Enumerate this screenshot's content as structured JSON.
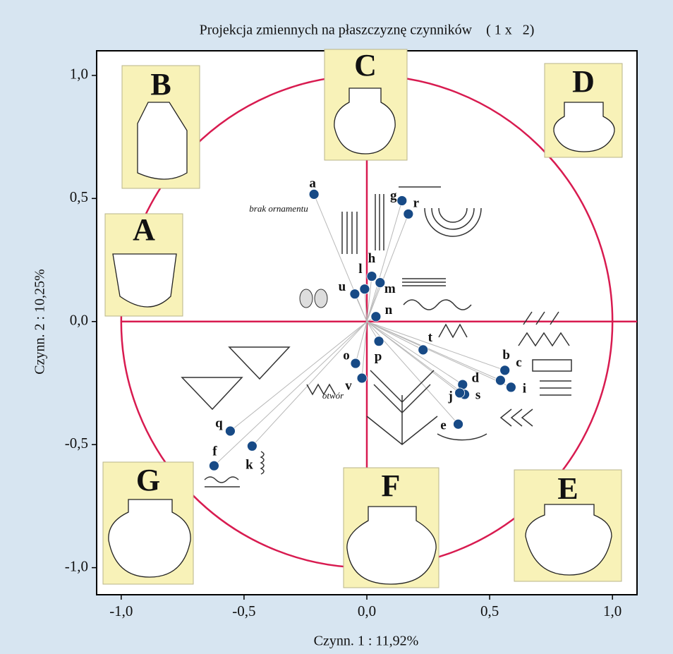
{
  "chart_data": {
    "type": "scatter",
    "title": "Projekcja zmiennych na płaszczyznę czynników    ( 1 x   2)",
    "x_label": "Czynn. 1 : 11,92%",
    "y_label": "Czynn. 2 : 10,25%",
    "point_labels": [
      "a",
      "g",
      "r",
      "h",
      "m",
      "l",
      "u",
      "n",
      "p",
      "t",
      "o",
      "v",
      "b",
      "c",
      "i",
      "d",
      "s",
      "j",
      "e",
      "q",
      "k",
      "f"
    ],
    "x": [
      -0.215,
      0.143,
      0.169,
      0.02,
      0.054,
      -0.009,
      -0.049,
      0.037,
      0.049,
      0.229,
      -0.046,
      -0.02,
      0.562,
      0.544,
      0.587,
      0.39,
      0.398,
      0.378,
      0.372,
      -0.556,
      -0.467,
      -0.622
    ],
    "y": [
      0.517,
      0.491,
      0.437,
      0.184,
      0.158,
      0.132,
      0.112,
      0.02,
      -0.08,
      -0.115,
      -0.17,
      -0.23,
      -0.198,
      -0.239,
      -0.267,
      -0.256,
      -0.296,
      -0.29,
      -0.417,
      -0.445,
      -0.506,
      -0.586
    ],
    "color": "#174a86",
    "xlim": [
      -1.1,
      1.1
    ],
    "ylim": [
      -1.11,
      1.1
    ],
    "xticks": [
      {
        "value": -1.0,
        "label": "-1,0"
      },
      {
        "value": -0.5,
        "label": "-0,5"
      },
      {
        "value": 0.0,
        "label": "0,0"
      },
      {
        "value": 0.5,
        "label": "0,5"
      },
      {
        "value": 1.0,
        "label": "1,0"
      }
    ],
    "yticks": [
      {
        "value": -1.0,
        "label": "-1,0"
      },
      {
        "value": -0.5,
        "label": "-0,5"
      },
      {
        "value": 0.0,
        "label": "0,0"
      },
      {
        "value": 0.5,
        "label": "0,5"
      },
      {
        "value": 1.0,
        "label": "1,0"
      }
    ],
    "unit_circle": true,
    "circle_color": "#d81b50",
    "annotations": [
      "brak ornamentu",
      "otwór"
    ],
    "panel_labels": [
      "A",
      "B",
      "C",
      "D",
      "E",
      "F",
      "G"
    ]
  }
}
